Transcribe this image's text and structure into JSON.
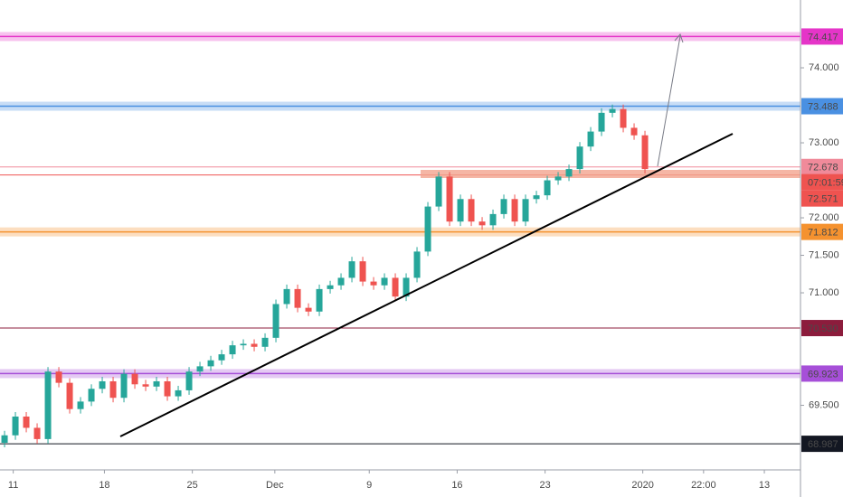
{
  "chart_data": {
    "type": "candlestick",
    "up_color": "#26a69a",
    "down_color": "#ef5350",
    "open": [
      69.0,
      69.1,
      69.35,
      69.2,
      69.05,
      69.95,
      69.8,
      69.45,
      69.55,
      69.72,
      69.82,
      69.6,
      69.92,
      69.78,
      69.75,
      69.82,
      69.62,
      69.7,
      69.95,
      70.02,
      70.1,
      70.18,
      70.3,
      70.32,
      70.28,
      70.4,
      70.85,
      71.05,
      70.8,
      70.75,
      71.05,
      71.1,
      71.2,
      71.42,
      71.15,
      71.1,
      71.2,
      70.95,
      71.2,
      71.55,
      72.15,
      72.55,
      71.95,
      72.25,
      71.95,
      71.9,
      72.05,
      72.25,
      71.95,
      72.25,
      72.3,
      72.5,
      72.55,
      72.65,
      72.95,
      73.15,
      73.4,
      73.45,
      73.2,
      73.1
    ],
    "high": [
      69.16,
      69.41,
      69.41,
      69.26,
      70.01,
      70.01,
      69.86,
      69.61,
      69.78,
      69.88,
      69.88,
      69.98,
      69.98,
      69.84,
      69.88,
      69.88,
      69.76,
      70.01,
      70.08,
      70.16,
      70.24,
      70.36,
      70.38,
      70.38,
      70.46,
      70.91,
      71.11,
      71.11,
      70.86,
      71.11,
      71.16,
      71.26,
      71.48,
      71.48,
      71.21,
      71.26,
      71.26,
      71.26,
      71.61,
      72.21,
      72.61,
      72.61,
      72.31,
      72.31,
      72.01,
      72.11,
      72.31,
      72.31,
      72.31,
      72.36,
      72.56,
      72.61,
      72.71,
      73.01,
      73.21,
      73.46,
      73.51,
      73.51,
      73.26,
      73.16
    ],
    "low": [
      68.94,
      69.04,
      69.14,
      68.99,
      68.99,
      69.74,
      69.39,
      69.39,
      69.49,
      69.66,
      69.54,
      69.54,
      69.72,
      69.69,
      69.69,
      69.56,
      69.56,
      69.64,
      69.89,
      69.96,
      70.04,
      70.12,
      70.24,
      70.22,
      70.22,
      70.34,
      70.79,
      70.74,
      70.69,
      70.69,
      70.99,
      71.04,
      71.14,
      71.09,
      71.04,
      71.04,
      70.89,
      70.89,
      71.14,
      71.49,
      72.09,
      71.89,
      71.89,
      71.89,
      71.84,
      71.84,
      71.99,
      71.89,
      71.89,
      72.19,
      72.24,
      72.44,
      72.49,
      72.59,
      72.89,
      73.09,
      73.34,
      73.14,
      73.04,
      72.59
    ],
    "close": [
      69.1,
      69.35,
      69.2,
      69.05,
      69.95,
      69.8,
      69.45,
      69.55,
      69.72,
      69.82,
      69.6,
      69.92,
      69.78,
      69.75,
      69.82,
      69.62,
      69.7,
      69.95,
      70.02,
      70.1,
      70.18,
      70.3,
      70.32,
      70.28,
      70.4,
      70.85,
      71.05,
      70.8,
      70.75,
      71.05,
      71.1,
      71.2,
      71.42,
      71.15,
      71.1,
      71.2,
      70.95,
      71.2,
      71.55,
      72.15,
      72.55,
      71.95,
      72.25,
      71.95,
      71.9,
      72.05,
      72.25,
      71.95,
      72.25,
      72.3,
      72.5,
      72.55,
      72.65,
      72.95,
      73.15,
      73.4,
      73.45,
      73.2,
      73.1,
      72.65
    ],
    "xlim": [
      -0.42,
      73.33
    ],
    "xticks": [
      {
        "value": 0.8,
        "label": "11"
      },
      {
        "value": 9.2,
        "label": "18"
      },
      {
        "value": 17.3,
        "label": "25"
      },
      {
        "value": 24.9,
        "label": "Dec"
      },
      {
        "value": 33.6,
        "label": "9"
      },
      {
        "value": 41.7,
        "label": "16"
      },
      {
        "value": 49.8,
        "label": "23"
      },
      {
        "value": 58.8,
        "label": "2020"
      },
      {
        "value": 64.4,
        "label": "22:00"
      },
      {
        "value": 70,
        "label": "13"
      }
    ],
    "ylim": [
      68.639,
      74.904
    ],
    "yticks": [
      {
        "value": 69.5,
        "label": "69.500"
      },
      {
        "value": 71,
        "label": "71.000"
      },
      {
        "value": 71.5,
        "label": "71.500"
      },
      {
        "value": 72,
        "label": "72.000"
      },
      {
        "value": 73,
        "label": "73.000"
      },
      {
        "value": 74,
        "label": "74.000"
      }
    ],
    "levels": [
      {
        "value": 74.417,
        "label": "74.417",
        "color": "#e535c8",
        "band": true
      },
      {
        "value": 73.488,
        "label": "73.488",
        "color": "#4a90e2",
        "band": true
      },
      {
        "value": 72.678,
        "label": "72.678",
        "color": "#f08a9a",
        "band": false
      },
      {
        "value": 71.812,
        "label": "71.812",
        "color": "#f5922f",
        "band": true
      },
      {
        "value": 70.53,
        "label": "70.530",
        "color": "#8c1c3c",
        "band": false
      },
      {
        "value": 69.923,
        "label": "69.923",
        "color": "#a64fd8",
        "band": true
      },
      {
        "value": 68.987,
        "label": "68.987",
        "color": "#131722",
        "band": false
      }
    ],
    "current_price": {
      "value": 72.571,
      "label": "72.571",
      "color": "#ef5350",
      "countdown": "07:01:59"
    }
  }
}
